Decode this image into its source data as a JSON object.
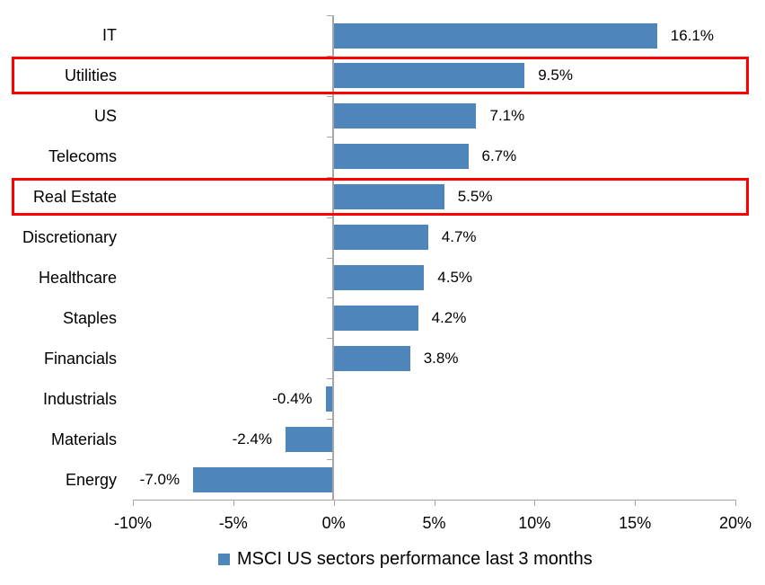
{
  "chart_data": {
    "type": "bar",
    "orientation": "horizontal",
    "title": "",
    "xlabel": "",
    "ylabel": "",
    "categories": [
      "IT",
      "Utilities",
      "US",
      "Telecoms",
      "Real Estate",
      "Discretionary",
      "Healthcare",
      "Staples",
      "Financials",
      "Industrials",
      "Materials",
      "Energy"
    ],
    "values": [
      16.1,
      9.5,
      7.1,
      6.7,
      5.5,
      4.7,
      4.5,
      4.2,
      3.8,
      -0.4,
      -2.4,
      -7.0
    ],
    "value_labels": [
      "16.1%",
      "9.5%",
      "7.1%",
      "6.7%",
      "5.5%",
      "4.7%",
      "4.5%",
      "4.2%",
      "3.8%",
      "-0.4%",
      "-2.4%",
      "-7.0%"
    ],
    "xlim": [
      -10,
      20
    ],
    "x_ticks": [
      -10,
      -5,
      0,
      5,
      10,
      15,
      20
    ],
    "x_tick_labels": [
      "-10%",
      "-5%",
      "0%",
      "5%",
      "10%",
      "15%",
      "20%"
    ],
    "grid": false,
    "legend": {
      "position": "bottom",
      "marker": "square-icon",
      "label": "MSCI US sectors performance last 3 months"
    },
    "highlighted_categories": [
      "Utilities",
      "Real Estate"
    ],
    "colors": {
      "bar": "#4E86BC",
      "highlight_border": "#FF0000",
      "axis": "#A6A6A6",
      "text": "#000000",
      "background": "#FFFFFF"
    }
  }
}
